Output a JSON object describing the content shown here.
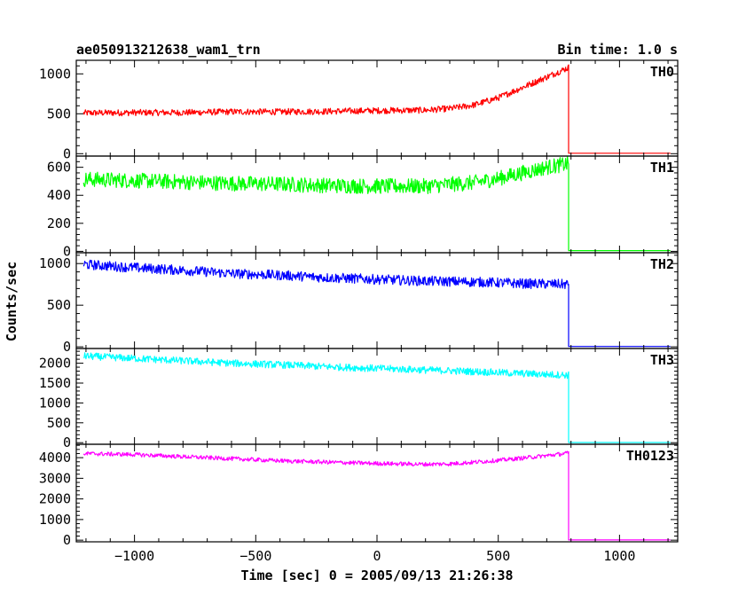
{
  "chart_data": {
    "type": "line",
    "title": "ae050913212638_wam1_trn",
    "subtitle": "Bin time: 1.0 s",
    "xlabel": "Time [sec] 0 = 2005/09/13 21:26:38",
    "ylabel": "Counts/sec",
    "xlim": [
      -1240,
      1240
    ],
    "x_ticks": [
      -1000,
      -500,
      0,
      500,
      1000
    ],
    "x_tick_labels": [
      "−1000",
      "−500",
      "0",
      "500",
      "1000"
    ],
    "grid": false,
    "panels": [
      {
        "name": "TH0",
        "color": "#ff0000",
        "ylim": [
          -30,
          1170
        ],
        "y_ticks": [
          0,
          500,
          1000
        ],
        "y_tick_labels": [
          "0",
          "500",
          "1000"
        ],
        "x_start": -1210,
        "x_end": 1210,
        "drop_x": 790,
        "after_drop": 5,
        "noise": 40,
        "points": [
          [
            -1210,
            510
          ],
          [
            -1000,
            515
          ],
          [
            -800,
            515
          ],
          [
            -600,
            525
          ],
          [
            -400,
            525
          ],
          [
            -200,
            530
          ],
          [
            0,
            540
          ],
          [
            200,
            545
          ],
          [
            300,
            565
          ],
          [
            400,
            610
          ],
          [
            500,
            700
          ],
          [
            600,
            830
          ],
          [
            700,
            960
          ],
          [
            760,
            1040
          ],
          [
            790,
            1080
          ]
        ]
      },
      {
        "name": "TH1",
        "color": "#00ff00",
        "ylim": [
          -10,
          680
        ],
        "y_ticks": [
          0,
          200,
          400,
          600
        ],
        "y_tick_labels": [
          "0",
          "200",
          "400",
          "600"
        ],
        "x_start": -1210,
        "x_end": 1210,
        "drop_x": 790,
        "after_drop": 5,
        "noise": 55,
        "points": [
          [
            -1210,
            515
          ],
          [
            -1000,
            505
          ],
          [
            -800,
            495
          ],
          [
            -600,
            485
          ],
          [
            -400,
            480
          ],
          [
            -200,
            470
          ],
          [
            0,
            465
          ],
          [
            200,
            465
          ],
          [
            400,
            490
          ],
          [
            500,
            520
          ],
          [
            600,
            560
          ],
          [
            700,
            600
          ],
          [
            790,
            625
          ]
        ]
      },
      {
        "name": "TH2",
        "color": "#0000ff",
        "ylim": [
          -20,
          1130
        ],
        "y_ticks": [
          0,
          500,
          1000
        ],
        "y_tick_labels": [
          "0",
          "500",
          "1000"
        ],
        "x_start": -1210,
        "x_end": 1210,
        "drop_x": 790,
        "after_drop": 5,
        "noise": 60,
        "points": [
          [
            -1210,
            990
          ],
          [
            -1000,
            950
          ],
          [
            -800,
            920
          ],
          [
            -600,
            880
          ],
          [
            -400,
            860
          ],
          [
            -200,
            830
          ],
          [
            0,
            810
          ],
          [
            200,
            790
          ],
          [
            400,
            780
          ],
          [
            600,
            760
          ],
          [
            790,
            750
          ]
        ]
      },
      {
        "name": "TH3",
        "color": "#00ffff",
        "ylim": [
          -40,
          2370
        ],
        "y_ticks": [
          0,
          500,
          1000,
          1500,
          2000
        ],
        "y_tick_labels": [
          "0",
          "500",
          "1000",
          "1500",
          "2000"
        ],
        "x_start": -1210,
        "x_end": 1210,
        "drop_x": 790,
        "after_drop": 5,
        "noise": 90,
        "points": [
          [
            -1210,
            2180
          ],
          [
            -1000,
            2120
          ],
          [
            -800,
            2060
          ],
          [
            -600,
            2000
          ],
          [
            -400,
            1960
          ],
          [
            -200,
            1910
          ],
          [
            0,
            1870
          ],
          [
            200,
            1830
          ],
          [
            400,
            1790
          ],
          [
            600,
            1740
          ],
          [
            790,
            1700
          ]
        ]
      },
      {
        "name": "TH0123",
        "color": "#ff00ff",
        "ylim": [
          -80,
          4650
        ],
        "y_ticks": [
          0,
          1000,
          2000,
          3000,
          4000
        ],
        "y_tick_labels": [
          "0",
          "1000",
          "2000",
          "3000",
          "4000"
        ],
        "x_start": -1210,
        "x_end": 1210,
        "drop_x": 790,
        "after_drop": 10,
        "noise": 100,
        "points": [
          [
            -1210,
            4200
          ],
          [
            -1000,
            4150
          ],
          [
            -800,
            4050
          ],
          [
            -600,
            3950
          ],
          [
            -400,
            3850
          ],
          [
            -200,
            3780
          ],
          [
            0,
            3720
          ],
          [
            200,
            3680
          ],
          [
            300,
            3700
          ],
          [
            400,
            3780
          ],
          [
            500,
            3870
          ],
          [
            600,
            3980
          ],
          [
            700,
            4100
          ],
          [
            790,
            4220
          ]
        ]
      }
    ]
  }
}
